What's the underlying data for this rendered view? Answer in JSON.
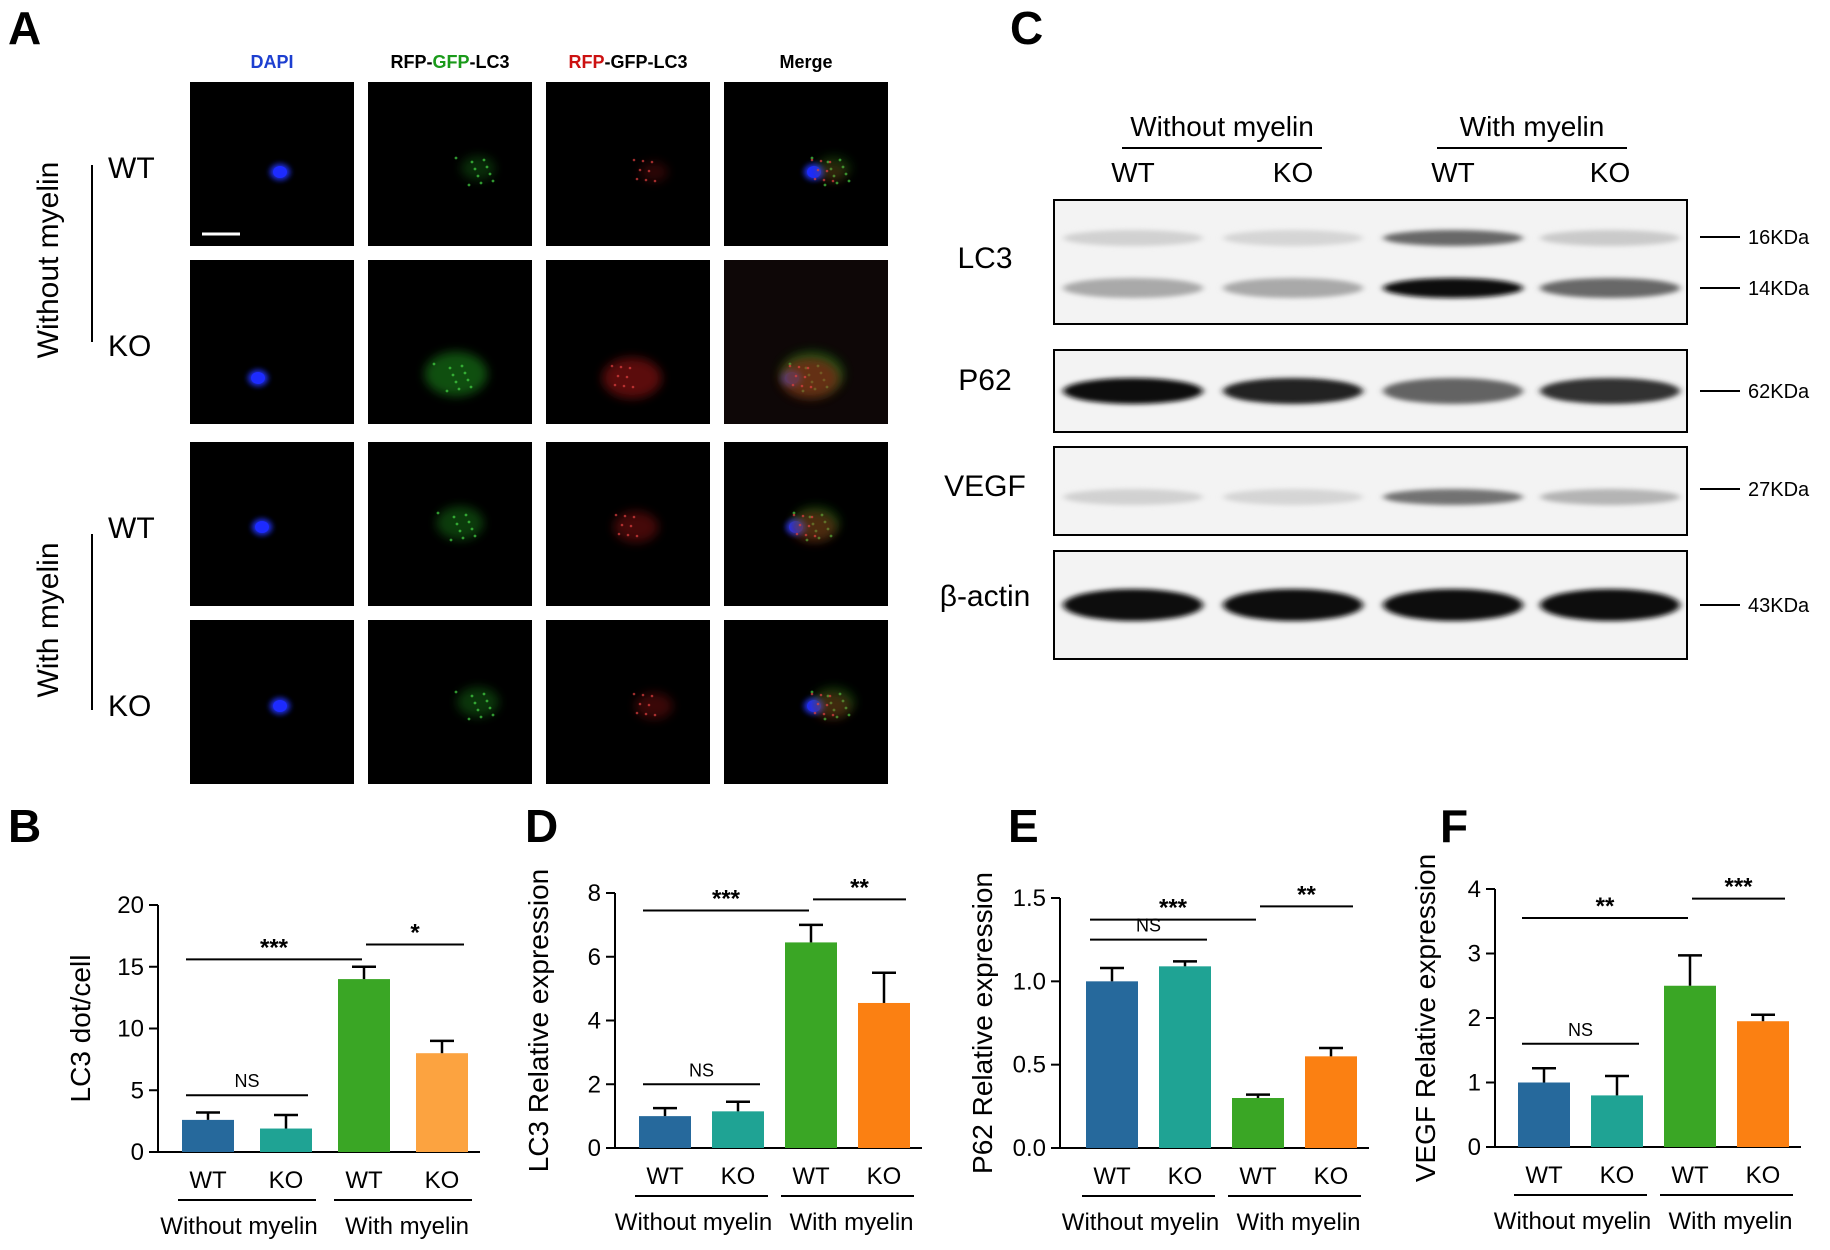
{
  "panels": {
    "A": "A",
    "B": "B",
    "C": "C",
    "D": "D",
    "E": "E",
    "F": "F"
  },
  "microscopy": {
    "columns": [
      {
        "parts": [
          {
            "text": "DAPI",
            "color": "#1d3fd0"
          }
        ]
      },
      {
        "parts": [
          {
            "text": "RFP-",
            "color": "#000000"
          },
          {
            "text": "GFP",
            "color": "#1a9a1a"
          },
          {
            "text": "-LC3",
            "color": "#000000"
          }
        ]
      },
      {
        "parts": [
          {
            "text": "RFP",
            "color": "#cc1111"
          },
          {
            "text": "-GFP-LC3",
            "color": "#000000"
          }
        ]
      },
      {
        "parts": [
          {
            "text": "Merge",
            "color": "#000000"
          }
        ]
      }
    ],
    "groups": [
      "Without myelin",
      "With myelin"
    ],
    "rows": [
      "WT",
      "KO",
      "WT",
      "KO"
    ]
  },
  "western": {
    "header_groups": [
      "Without myelin",
      "With myelin"
    ],
    "lanes": [
      "WT",
      "KO",
      "WT",
      "KO"
    ],
    "blots": [
      {
        "label": "LC3",
        "markers": [
          "16KDa",
          "14KDa"
        ]
      },
      {
        "label": "P62",
        "markers": [
          "62KDa"
        ]
      },
      {
        "label": "VEGF",
        "markers": [
          "27KDa"
        ]
      },
      {
        "label": "β-actin",
        "markers": [
          "43KDa"
        ]
      }
    ]
  },
  "chart_data": [
    {
      "panel": "B",
      "type": "bar",
      "ylabel": "LC3 dot/cell",
      "ylim": [
        0,
        20
      ],
      "yticks": [
        0,
        5,
        10,
        15,
        20
      ],
      "categories": [
        "WT",
        "KO",
        "WT",
        "KO"
      ],
      "groups": [
        "Without myelin",
        "With myelin"
      ],
      "values": [
        2.6,
        1.9,
        14.0,
        8.0
      ],
      "errors": [
        0.6,
        1.1,
        1.0,
        1.0
      ],
      "colors": [
        "#26699c",
        "#1fa394",
        "#3aa625",
        "#fca340"
      ],
      "comparisons": [
        {
          "from": 0,
          "to": 1,
          "label": "NS",
          "y": 4.6
        },
        {
          "from": 0,
          "to": 2,
          "label": "***",
          "y": 15.6
        },
        {
          "from": 2,
          "to": 3,
          "label": "*",
          "y": 16.8
        }
      ]
    },
    {
      "panel": "D",
      "type": "bar",
      "ylabel": "LC3 Relative expression",
      "ylim": [
        0,
        8
      ],
      "yticks": [
        0,
        2,
        4,
        6,
        8
      ],
      "categories": [
        "WT",
        "KO",
        "WT",
        "KO"
      ],
      "groups": [
        "Without myelin",
        "With myelin"
      ],
      "values": [
        1.0,
        1.15,
        6.45,
        4.55
      ],
      "errors": [
        0.25,
        0.3,
        0.55,
        0.95
      ],
      "colors": [
        "#26699c",
        "#1fa394",
        "#3aa625",
        "#fb8012"
      ],
      "comparisons": [
        {
          "from": 0,
          "to": 1,
          "label": "NS",
          "y": 2.0
        },
        {
          "from": 0,
          "to": 2,
          "label": "***",
          "y": 7.45
        },
        {
          "from": 2,
          "to": 3,
          "label": "**",
          "y": 7.8
        }
      ]
    },
    {
      "panel": "E",
      "type": "bar",
      "ylabel": "P62 Relative expression",
      "ylim": [
        0,
        1.5
      ],
      "yticks": [
        0.0,
        0.5,
        1.0,
        1.5
      ],
      "ytick_labels": [
        "0.0",
        "0.5",
        "1.0",
        "1.5"
      ],
      "categories": [
        "WT",
        "KO",
        "WT",
        "KO"
      ],
      "groups": [
        "Without myelin",
        "With myelin"
      ],
      "values": [
        1.0,
        1.09,
        0.3,
        0.55
      ],
      "errors": [
        0.08,
        0.03,
        0.02,
        0.05
      ],
      "colors": [
        "#26699c",
        "#1fa394",
        "#3aa625",
        "#fb8012"
      ],
      "comparisons": [
        {
          "from": 0,
          "to": 1,
          "label": "NS",
          "y": 1.25
        },
        {
          "from": 0,
          "to": 2,
          "label": "***",
          "y": 1.37
        },
        {
          "from": 2,
          "to": 3,
          "label": "**",
          "y": 1.45
        }
      ]
    },
    {
      "panel": "F",
      "type": "bar",
      "ylabel": "VEGF Relative expression",
      "ylim": [
        0,
        4
      ],
      "yticks": [
        0,
        1,
        2,
        3,
        4
      ],
      "categories": [
        "WT",
        "KO",
        "WT",
        "KO"
      ],
      "groups": [
        "Without myelin",
        "With myelin"
      ],
      "values": [
        1.0,
        0.8,
        2.5,
        1.95
      ],
      "errors": [
        0.22,
        0.3,
        0.47,
        0.1
      ],
      "colors": [
        "#26699c",
        "#1fa394",
        "#3aa625",
        "#fb8012"
      ],
      "comparisons": [
        {
          "from": 0,
          "to": 1,
          "label": "NS",
          "y": 1.6
        },
        {
          "from": 0,
          "to": 2,
          "label": "**",
          "y": 3.55
        },
        {
          "from": 2,
          "to": 3,
          "label": "***",
          "y": 3.85
        }
      ]
    }
  ]
}
